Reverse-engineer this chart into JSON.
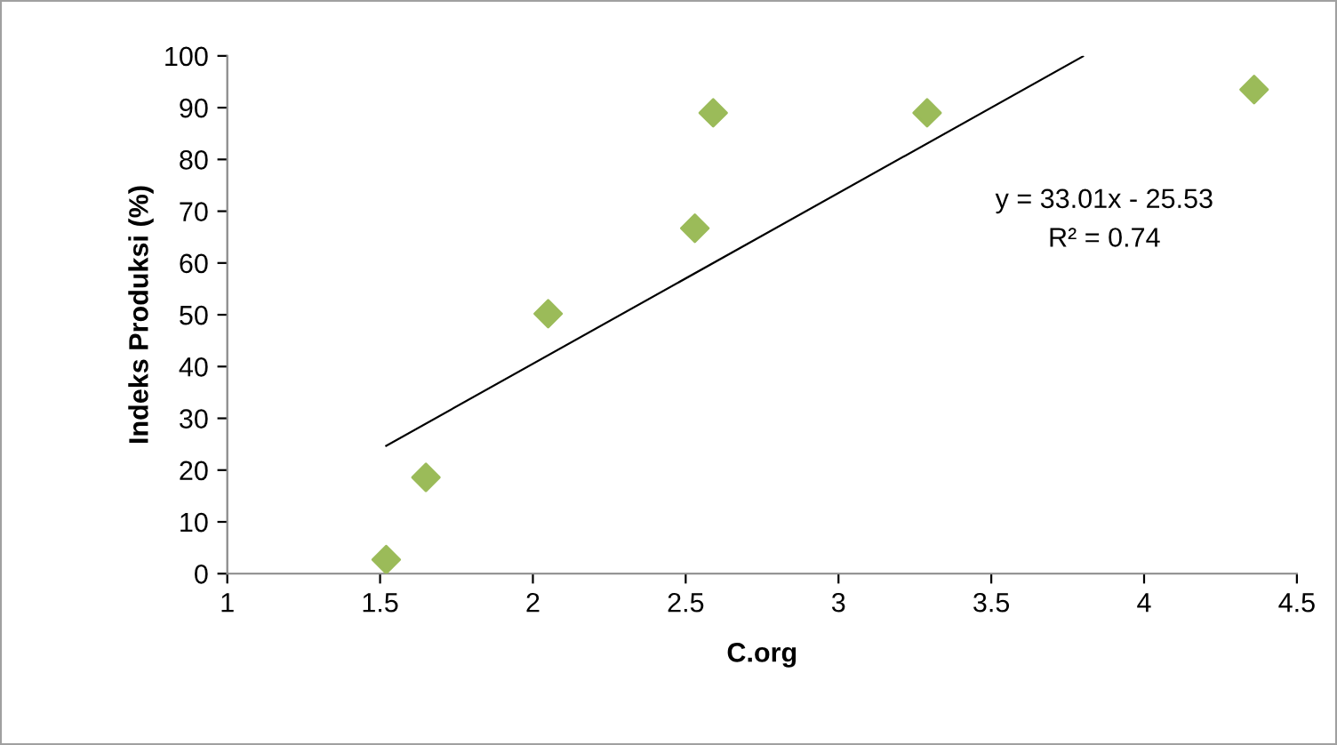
{
  "chart_data": {
    "type": "scatter",
    "xlabel": "C.org",
    "ylabel": "Indeks Produksi (%)",
    "xlim": [
      1,
      4.5
    ],
    "xticks": [
      1,
      1.5,
      2,
      2.5,
      3,
      3.5,
      4,
      4.5
    ],
    "ylim": [
      0,
      100
    ],
    "yticks": [
      0,
      10,
      20,
      30,
      40,
      50,
      60,
      70,
      80,
      90,
      100
    ],
    "grid": false,
    "legend": false,
    "series": [
      {
        "marker": "diamond",
        "color": "#9bbb59",
        "x": [
          1.52,
          1.65,
          2.05,
          2.53,
          2.59,
          3.29,
          4.36
        ],
        "values": [
          2.7,
          18.6,
          50.2,
          66.7,
          89,
          89,
          93.5
        ]
      },
      {
        "type": "line",
        "marker": "none",
        "color": "#000000",
        "x": [
          1.52,
          3.8
        ],
        "values": [
          24.7,
          99.9
        ]
      }
    ],
    "annotations": [
      "y = 33.01x - 25.53",
      "R² = 0.74"
    ]
  }
}
